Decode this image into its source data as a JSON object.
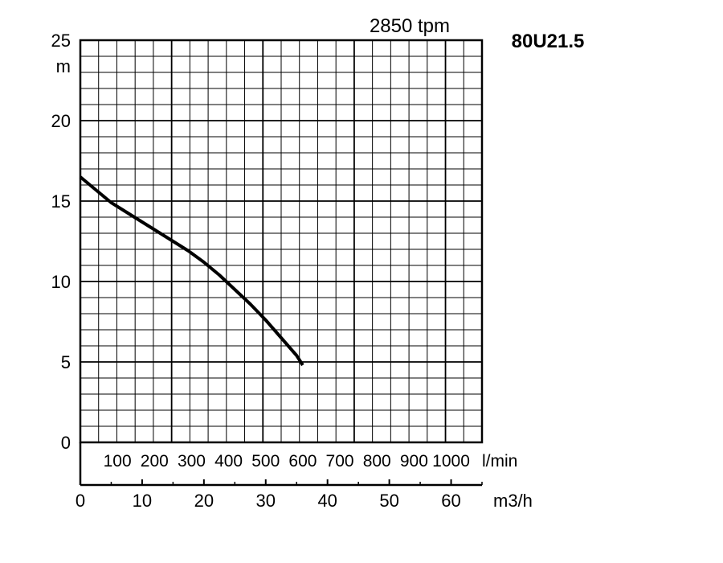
{
  "speed_label": "2850 tpm",
  "model_label": "80U21.5",
  "chart_data": {
    "type": "line",
    "title": "",
    "ylabel": "m",
    "xlabel": "m3/h",
    "x2label": "l/min",
    "ylim": [
      0,
      25
    ],
    "xlim": [
      0,
      65
    ],
    "yticks": [
      "0",
      "5",
      "10",
      "15",
      "20",
      "25"
    ],
    "xticks": [
      "0",
      "10",
      "20",
      "30",
      "40",
      "50",
      "60"
    ],
    "x2ticks": [
      "100",
      "200",
      "300",
      "400",
      "500",
      "600",
      "700",
      "800",
      "900",
      "1000"
    ],
    "grid": true,
    "series": [
      {
        "x": [
          0,
          2.5,
          5,
          7.5,
          10,
          12.5,
          15,
          17.5,
          20,
          22.5,
          25,
          27.5,
          30,
          32.5,
          35,
          36
        ],
        "y": [
          16.5,
          15.7,
          14.9,
          14.3,
          13.7,
          13.1,
          12.5,
          11.9,
          11.2,
          10.4,
          9.5,
          8.6,
          7.6,
          6.5,
          5.4,
          4.8
        ]
      }
    ]
  }
}
